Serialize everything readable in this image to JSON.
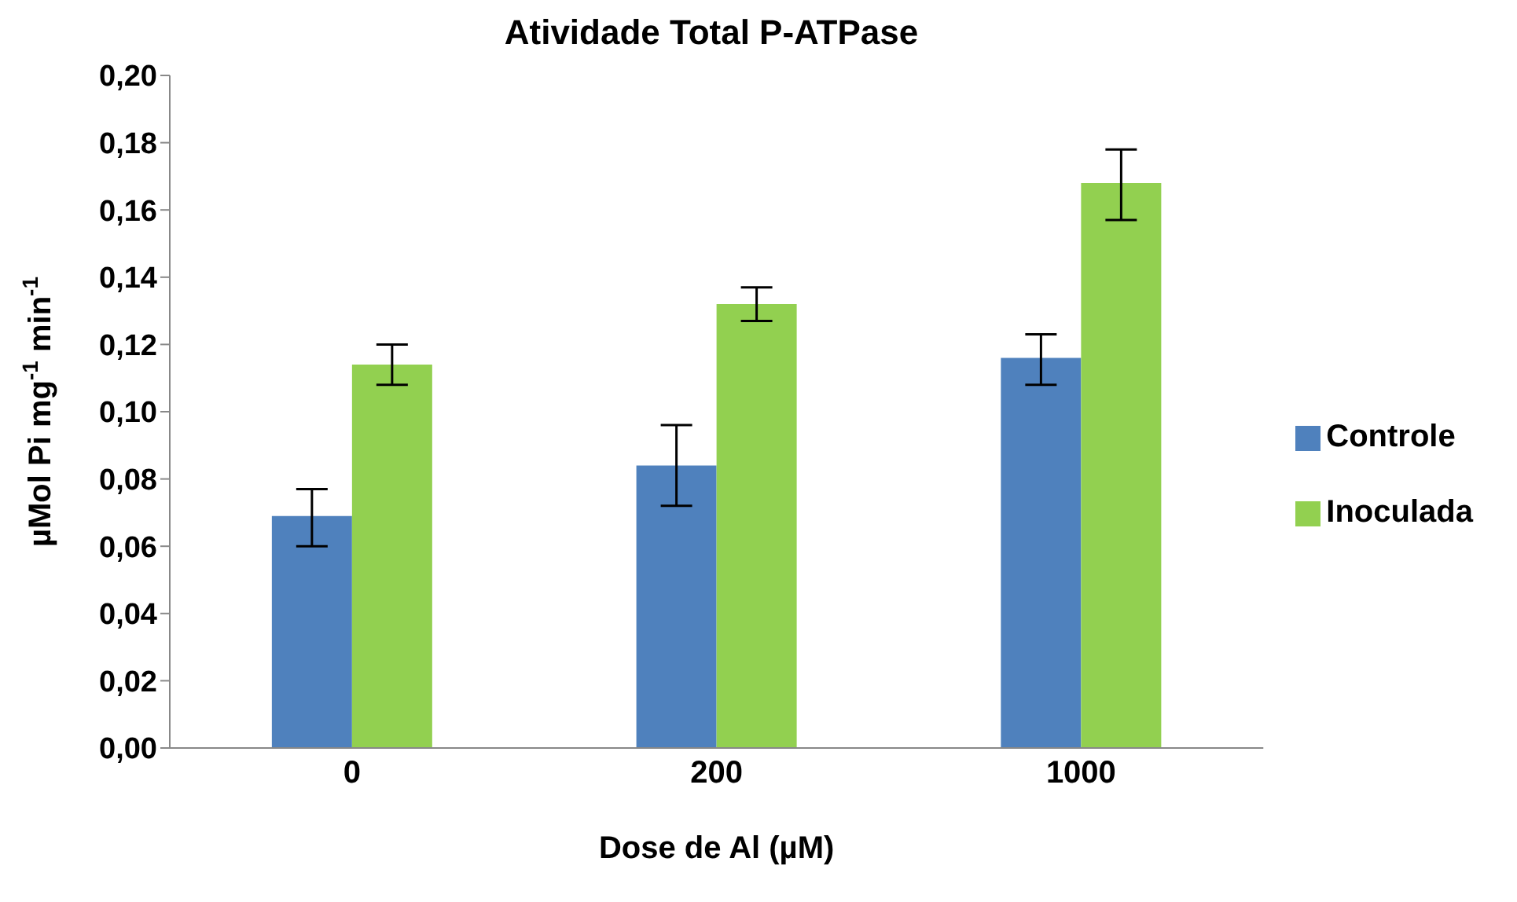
{
  "chart_data": {
    "type": "bar",
    "title": "Atividade Total P-ATPase",
    "xlabel": "Dose de Al (µM)",
    "ylabel": "µMol Pi mg$^{-1}$ min$^{-1}$",
    "categories": [
      "0",
      "200",
      "1000"
    ],
    "series": [
      {
        "name": "Controle",
        "color": "#4f81bd",
        "values": [
          0.069,
          0.084,
          0.116
        ],
        "errors": [
          [
            0.06,
            0.077
          ],
          [
            0.072,
            0.096
          ],
          [
            0.108,
            0.123
          ]
        ]
      },
      {
        "name": "Inoculada",
        "color": "#92d050",
        "values": [
          0.114,
          0.132,
          0.168
        ],
        "errors": [
          [
            0.108,
            0.12
          ],
          [
            0.127,
            0.137
          ],
          [
            0.157,
            0.178
          ]
        ]
      }
    ],
    "ylim": [
      0,
      0.2
    ],
    "yticks": [
      {
        "value": 0,
        "label": "0,00"
      },
      {
        "value": 0.02,
        "label": "0,02"
      },
      {
        "value": 0.04,
        "label": "0,04"
      },
      {
        "value": 0.06,
        "label": "0,06"
      },
      {
        "value": 0.08,
        "label": "0,08"
      },
      {
        "value": 0.1,
        "label": "0,10"
      },
      {
        "value": 0.12,
        "label": "0,12"
      },
      {
        "value": 0.14,
        "label": "0,14"
      },
      {
        "value": 0.16,
        "label": "0,16"
      },
      {
        "value": 0.18,
        "label": "0,18"
      },
      {
        "value": 0.2,
        "label": "0,20"
      }
    ],
    "grid": false,
    "legend": "right"
  }
}
